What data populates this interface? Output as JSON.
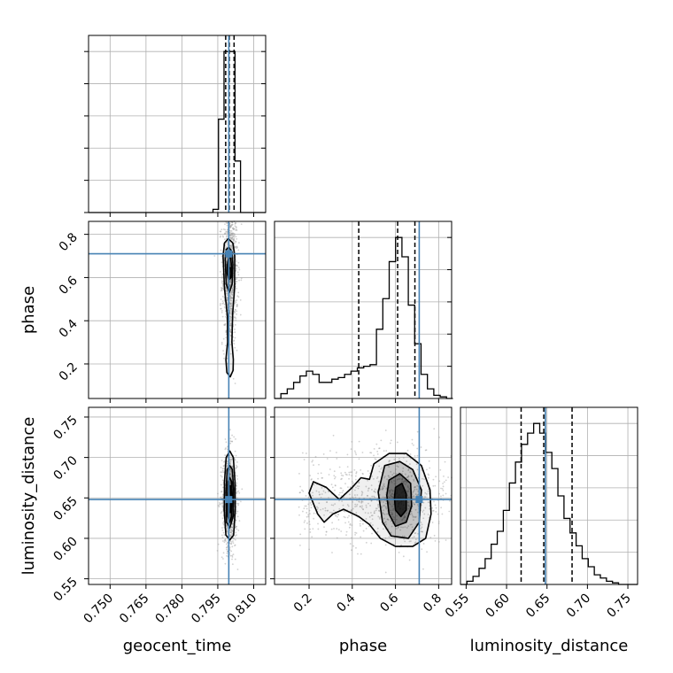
{
  "chart_data": {
    "type": "corner",
    "colors": {
      "truth": "#4682b4",
      "hist": "#000000",
      "grid": "#b0b0b0",
      "points": "#9a9a9a"
    },
    "parameters": [
      {
        "name": "geocent_time",
        "label": "geocent_time",
        "range": [
          0.741,
          0.815
        ],
        "ticks": [
          "0.750",
          "0.765",
          "0.780",
          "0.795",
          "0.810"
        ],
        "tick_values": [
          0.75,
          0.765,
          0.78,
          0.795,
          0.81
        ],
        "truth": 0.7996,
        "quantiles": [
          0.7983,
          0.7998,
          0.8018
        ]
      },
      {
        "name": "phase",
        "label": "phase",
        "range": [
          0.04,
          0.86
        ],
        "ticks": [
          "0.2",
          "0.4",
          "0.6",
          "0.8"
        ],
        "tick_values": [
          0.2,
          0.4,
          0.6,
          0.8
        ],
        "truth": 0.71,
        "quantiles": [
          0.43,
          0.61,
          0.69
        ]
      },
      {
        "name": "luminosity_distance",
        "label": "luminosity_distance",
        "range": [
          0.543,
          0.762
        ],
        "ticks": [
          "0.55",
          "0.60",
          "0.65",
          "0.70",
          "0.75"
        ],
        "tick_values": [
          0.55,
          0.6,
          0.65,
          0.7,
          0.75
        ],
        "truth": 0.648,
        "quantiles": [
          0.618,
          0.646,
          0.681
        ]
      }
    ],
    "histograms": {
      "geocent_time": {
        "bins": [
          0.793,
          0.7953,
          0.7976,
          0.7999,
          0.8022,
          0.8045,
          0.8068
        ],
        "counts": [
          0.02,
          0.58,
          1.0,
          1.0,
          0.32,
          0.0
        ]
      },
      "phase": {
        "bins": [
          0.04,
          0.0695,
          0.099,
          0.1285,
          0.158,
          0.1875,
          0.217,
          0.2465,
          0.276,
          0.3055,
          0.335,
          0.3645,
          0.394,
          0.4235,
          0.453,
          0.4825,
          0.512,
          0.5415,
          0.571,
          0.6005,
          0.63,
          0.6595,
          0.689,
          0.7185,
          0.748,
          0.7775,
          0.807,
          0.8365,
          0.866
        ],
        "counts": [
          0.0,
          0.03,
          0.06,
          0.1,
          0.14,
          0.17,
          0.15,
          0.1,
          0.1,
          0.12,
          0.13,
          0.15,
          0.17,
          0.19,
          0.2,
          0.21,
          0.43,
          0.62,
          0.85,
          1.0,
          0.88,
          0.58,
          0.34,
          0.15,
          0.06,
          0.02,
          0.01,
          0.0
        ]
      },
      "luminosity_distance": {
        "bins": [
          0.5435,
          0.551,
          0.5585,
          0.566,
          0.5735,
          0.581,
          0.5885,
          0.596,
          0.6035,
          0.611,
          0.6185,
          0.626,
          0.6335,
          0.641,
          0.6485,
          0.656,
          0.6635,
          0.671,
          0.6785,
          0.686,
          0.6935,
          0.701,
          0.7085,
          0.716,
          0.7235,
          0.731,
          0.7385,
          0.746,
          0.7535,
          0.761
        ],
        "counts": [
          0.0,
          0.02,
          0.05,
          0.1,
          0.16,
          0.25,
          0.33,
          0.46,
          0.63,
          0.76,
          0.87,
          0.94,
          1.0,
          0.94,
          0.82,
          0.72,
          0.55,
          0.41,
          0.32,
          0.24,
          0.16,
          0.11,
          0.06,
          0.04,
          0.02,
          0.01,
          0.0,
          0.0,
          0.0
        ]
      }
    },
    "hist_ylim": [
      0,
      1.1
    ],
    "pairs": [
      {
        "x": "geocent_time",
        "y": "phase",
        "mode": [
          0.8001,
          0.62
        ],
        "contours": [
          [
            [
              0.7972,
              0.7
            ],
            [
              0.7978,
              0.76
            ],
            [
              0.7994,
              0.78
            ],
            [
              0.8013,
              0.76
            ],
            [
              0.8021,
              0.7
            ],
            [
              0.802,
              0.55
            ],
            [
              0.8012,
              0.43
            ],
            [
              0.8009,
              0.3
            ],
            [
              0.8015,
              0.22
            ],
            [
              0.8014,
              0.17
            ],
            [
              0.8002,
              0.14
            ],
            [
              0.7988,
              0.16
            ],
            [
              0.7984,
              0.22
            ],
            [
              0.7991,
              0.3
            ],
            [
              0.799,
              0.42
            ],
            [
              0.7978,
              0.55
            ]
          ],
          [
            [
              0.7981,
              0.69
            ],
            [
              0.7985,
              0.73
            ],
            [
              0.7997,
              0.74
            ],
            [
              0.8009,
              0.72
            ],
            [
              0.8013,
              0.66
            ],
            [
              0.801,
              0.57
            ],
            [
              0.7998,
              0.53
            ],
            [
              0.7985,
              0.57
            ]
          ],
          [
            [
              0.799,
              0.66
            ],
            [
              0.7995,
              0.69
            ],
            [
              0.8004,
              0.69
            ],
            [
              0.8009,
              0.64
            ],
            [
              0.8006,
              0.6
            ],
            [
              0.7996,
              0.59
            ],
            [
              0.7989,
              0.62
            ]
          ],
          [
            [
              0.7995,
              0.63
            ],
            [
              0.7998,
              0.645
            ],
            [
              0.8004,
              0.645
            ],
            [
              0.8007,
              0.62
            ],
            [
              0.8004,
              0.6
            ],
            [
              0.7997,
              0.6
            ]
          ]
        ]
      },
      {
        "x": "geocent_time",
        "y": "luminosity_distance",
        "mode": [
          0.8,
          0.648
        ],
        "contours": [
          [
            [
              0.7985,
              0.7
            ],
            [
              0.8,
              0.708
            ],
            [
              0.8015,
              0.7
            ],
            [
              0.8022,
              0.67
            ],
            [
              0.8023,
              0.635
            ],
            [
              0.8016,
              0.604
            ],
            [
              0.8,
              0.598
            ],
            [
              0.7984,
              0.604
            ],
            [
              0.7977,
              0.635
            ],
            [
              0.7978,
              0.67
            ]
          ],
          [
            [
              0.7989,
              0.685
            ],
            [
              0.8,
              0.69
            ],
            [
              0.8011,
              0.685
            ],
            [
              0.8016,
              0.66
            ],
            [
              0.8015,
              0.628
            ],
            [
              0.8,
              0.613
            ],
            [
              0.7986,
              0.62
            ],
            [
              0.7984,
              0.655
            ]
          ],
          [
            [
              0.7993,
              0.67
            ],
            [
              0.8,
              0.675
            ],
            [
              0.8008,
              0.67
            ],
            [
              0.8011,
              0.65
            ],
            [
              0.8008,
              0.627
            ],
            [
              0.8,
              0.62
            ],
            [
              0.7992,
              0.627
            ],
            [
              0.799,
              0.65
            ]
          ],
          [
            [
              0.7997,
              0.665
            ],
            [
              0.8003,
              0.665
            ],
            [
              0.8006,
              0.648
            ],
            [
              0.8003,
              0.632
            ],
            [
              0.7997,
              0.632
            ],
            [
              0.7994,
              0.648
            ]
          ]
        ]
      },
      {
        "x": "phase",
        "y": "luminosity_distance",
        "mode": [
          0.62,
          0.648
        ],
        "contours": [
          [
            [
              0.48,
              0.673
            ],
            [
              0.5,
              0.692
            ],
            [
              0.57,
              0.705
            ],
            [
              0.65,
              0.705
            ],
            [
              0.72,
              0.69
            ],
            [
              0.76,
              0.66
            ],
            [
              0.765,
              0.63
            ],
            [
              0.74,
              0.6
            ],
            [
              0.68,
              0.59
            ],
            [
              0.6,
              0.59
            ],
            [
              0.53,
              0.6
            ],
            [
              0.48,
              0.617
            ],
            [
              0.43,
              0.627
            ],
            [
              0.36,
              0.636
            ],
            [
              0.31,
              0.63
            ],
            [
              0.27,
              0.62
            ],
            [
              0.24,
              0.63
            ],
            [
              0.2,
              0.656
            ],
            [
              0.22,
              0.67
            ],
            [
              0.28,
              0.663
            ],
            [
              0.34,
              0.648
            ],
            [
              0.4,
              0.663
            ],
            [
              0.44,
              0.675
            ]
          ],
          [
            [
              0.55,
              0.69
            ],
            [
              0.62,
              0.695
            ],
            [
              0.68,
              0.685
            ],
            [
              0.72,
              0.66
            ],
            [
              0.71,
              0.62
            ],
            [
              0.66,
              0.6
            ],
            [
              0.58,
              0.603
            ],
            [
              0.54,
              0.62
            ],
            [
              0.52,
              0.657
            ]
          ],
          [
            [
              0.57,
              0.672
            ],
            [
              0.62,
              0.68
            ],
            [
              0.67,
              0.668
            ],
            [
              0.675,
              0.64
            ],
            [
              0.65,
              0.62
            ],
            [
              0.6,
              0.615
            ],
            [
              0.57,
              0.63
            ],
            [
              0.56,
              0.653
            ]
          ],
          [
            [
              0.6,
              0.663
            ],
            [
              0.63,
              0.668
            ],
            [
              0.65,
              0.655
            ],
            [
              0.65,
              0.635
            ],
            [
              0.625,
              0.627
            ],
            [
              0.6,
              0.635
            ],
            [
              0.595,
              0.65
            ]
          ]
        ]
      }
    ]
  }
}
